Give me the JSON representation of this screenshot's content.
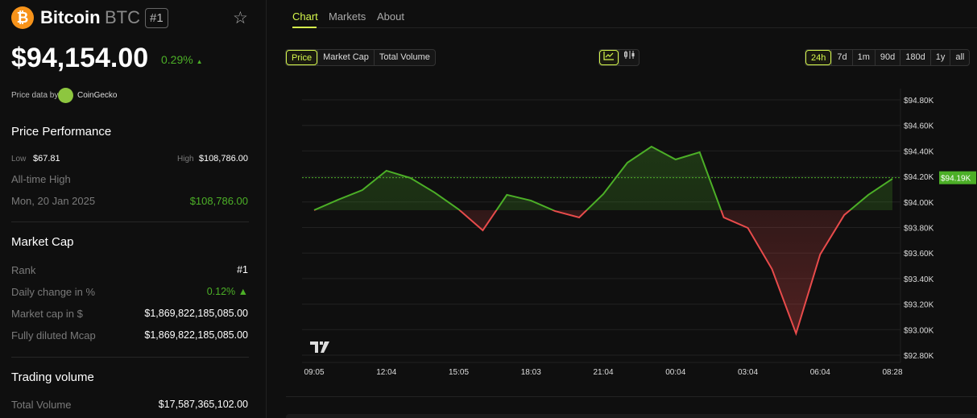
{
  "coin": {
    "icon": "bitcoin-icon",
    "name": "Bitcoin",
    "symbol": "BTC",
    "rank": "#1",
    "price": "$94,154.00",
    "change": "0.29%",
    "change_arrow": "▲",
    "price_data_by": "Price data by",
    "source": "CoinGecko"
  },
  "performance": {
    "title": "Price Performance",
    "low_label": "Low",
    "low": "$67.81",
    "high_label": "High",
    "high": "$108,786.00",
    "ath_label": "All-time High",
    "ath_date": "Mon, 20 Jan 2025",
    "ath": "$108,786.00"
  },
  "market_cap": {
    "title": "Market Cap",
    "rows": [
      {
        "label": "Rank",
        "value": "#1"
      },
      {
        "label": "Daily change in %",
        "value": "0.12% ▲"
      },
      {
        "label": "Market cap in $",
        "value": "$1,869,822,185,085.00"
      },
      {
        "label": "Fully diluted Mcap",
        "value": "$1,869,822,185,085.00"
      }
    ]
  },
  "trading": {
    "title": "Trading volume",
    "rows": [
      {
        "label": "Total Volume",
        "value": "$17,587,365,102.00"
      }
    ]
  },
  "tabs": [
    "Chart",
    "Markets",
    "About"
  ],
  "metrics": [
    "Price",
    "Market Cap",
    "Total Volume"
  ],
  "chart_types": [
    "line-chart-icon",
    "candlestick-icon"
  ],
  "ranges": [
    "24h",
    "7d",
    "1m",
    "90d",
    "180d",
    "1y",
    "all"
  ],
  "colors": {
    "accent": "#d6f84c",
    "up": "#4caf27",
    "down": "#e84b4b"
  },
  "chart_data": {
    "type": "line",
    "x": [
      "09:05",
      "",
      "",
      "12:04",
      "",
      "",
      "15:05",
      "",
      "",
      "18:03",
      "",
      "",
      "21:04",
      "",
      "",
      "00:04",
      "",
      "",
      "03:04",
      "",
      "",
      "06:04",
      "",
      "",
      "08:28"
    ],
    "x_tick_labels": [
      "09:05",
      "12:04",
      "15:05",
      "18:03",
      "21:04",
      "00:04",
      "03:04",
      "06:04",
      "08:28"
    ],
    "values": [
      93936,
      94018,
      94093,
      94245,
      94188,
      94074,
      93942,
      93778,
      94056,
      94011,
      93929,
      93879,
      94062,
      94308,
      94434,
      94333,
      94390,
      93879,
      93797,
      93475,
      92970,
      93589,
      93898,
      94056,
      94182
    ],
    "baseline": 93936,
    "current_price_label": "$94.19K",
    "current_price": 94190,
    "y_tick_labels": [
      "$94.80K",
      "$94.60K",
      "$94.40K",
      "$94.20K",
      "$94.00K",
      "$93.80K",
      "$93.60K",
      "$93.40K",
      "$93.20K",
      "$93.00K",
      "$92.80K"
    ],
    "ylim": [
      92800,
      94800
    ],
    "grid": true,
    "watermark": "TV"
  }
}
